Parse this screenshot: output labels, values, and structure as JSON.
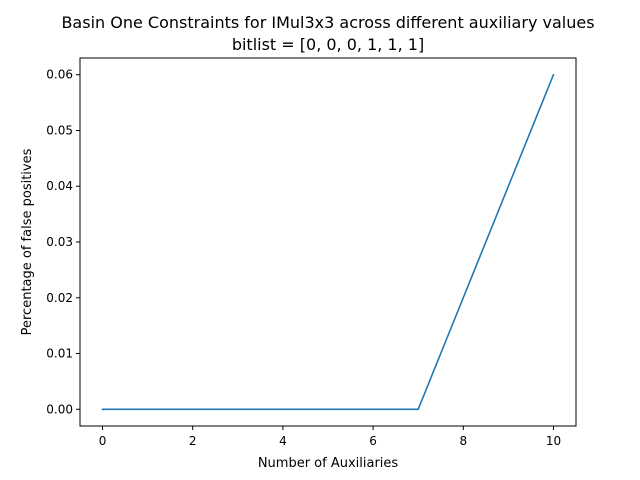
{
  "chart_data": {
    "type": "line",
    "title": "Basin One Constraints for IMul3x3 across different auxiliary values",
    "subtitle": "bitlist = [0, 0, 0, 1, 1, 1]",
    "xlabel": "Number of Auxiliaries",
    "ylabel": "Percentage of false positives",
    "xlim": [
      -0.5,
      10.5
    ],
    "ylim": [
      -0.003,
      0.063
    ],
    "xticks": [
      0,
      2,
      4,
      6,
      8,
      10
    ],
    "xtick_labels": [
      "0",
      "2",
      "4",
      "6",
      "8",
      "10"
    ],
    "yticks": [
      0.0,
      0.01,
      0.02,
      0.03,
      0.04,
      0.05,
      0.06
    ],
    "ytick_labels": [
      "0.00",
      "0.01",
      "0.02",
      "0.03",
      "0.04",
      "0.05",
      "0.06"
    ],
    "grid": false,
    "series": [
      {
        "color": "#1f77b4",
        "x": [
          0,
          1,
          2,
          3,
          4,
          5,
          6,
          7,
          8,
          9,
          10
        ],
        "y": [
          0,
          0,
          0,
          0,
          0,
          0,
          0,
          0,
          0.02,
          0.04,
          0.06
        ]
      }
    ]
  }
}
